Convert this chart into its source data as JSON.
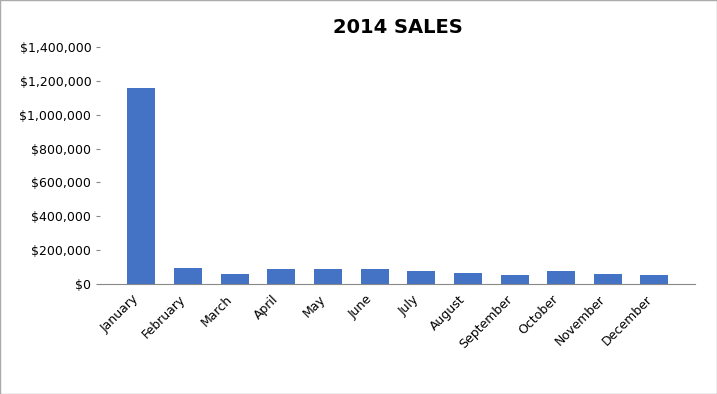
{
  "title": "2014 SALES",
  "categories": [
    "January",
    "February",
    "March",
    "April",
    "May",
    "June",
    "July",
    "August",
    "September",
    "October",
    "November",
    "December"
  ],
  "values": [
    1160000,
    90000,
    55000,
    85000,
    88000,
    88000,
    75000,
    63000,
    52000,
    78000,
    57000,
    53000
  ],
  "bar_color": "#4472C4",
  "ylim": [
    0,
    1400000
  ],
  "yticks": [
    0,
    200000,
    400000,
    600000,
    800000,
    1000000,
    1200000,
    1400000
  ],
  "background_color": "#FFFFFF",
  "title_fontsize": 14,
  "tick_fontsize": 9,
  "border_color": "#AAAAAA"
}
